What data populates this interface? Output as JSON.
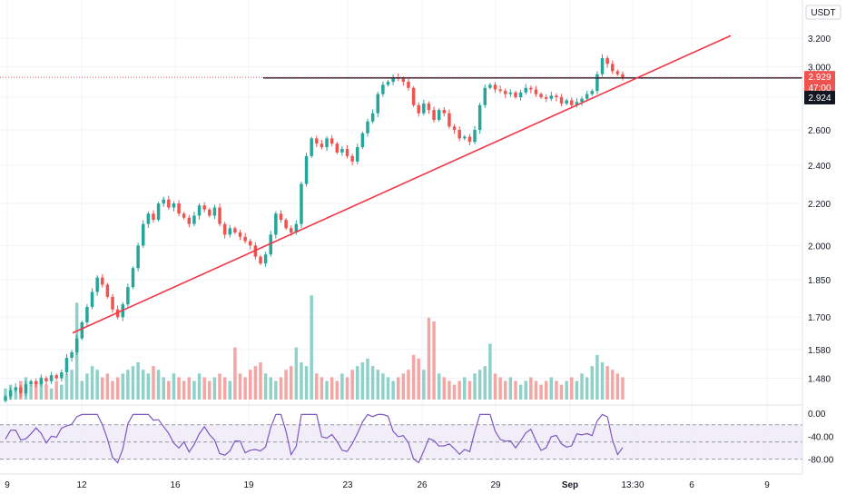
{
  "chart_data": {
    "type": "candlestick",
    "currency_label": "USDT",
    "price_axis": {
      "ticks": [
        "3.200",
        "3.000",
        "2.800",
        "2.600",
        "2.400",
        "2.200",
        "2.000",
        "1.850",
        "1.700",
        "1.580",
        "1.480"
      ],
      "tick_values": [
        3.2,
        3.0,
        2.8,
        2.6,
        2.4,
        2.2,
        2.0,
        1.85,
        1.7,
        1.58,
        1.48
      ],
      "scale": "log",
      "range": [
        1.41,
        3.35
      ]
    },
    "time_axis": {
      "labels": [
        "9",
        "12",
        "16",
        "19",
        "23",
        "26",
        "29",
        "Sep",
        "13:30",
        "6",
        "9"
      ]
    },
    "price_badges": {
      "last_price": "2.929",
      "countdown": "47:00",
      "crosshair_price": "2.924"
    },
    "colors": {
      "up": "#26a69a",
      "down": "#ef5350",
      "volume_up": "#8fd1c9",
      "volume_down": "#f4a6a4",
      "trendline": "#f23645",
      "horizontal_line": "#131722",
      "rsi_line": "#7e57c2",
      "rsi_band": "#ede7f6"
    },
    "annotations": {
      "horizontal_level": 2.925,
      "trendline": {
        "start_price": 1.64,
        "end_price": 3.22
      }
    },
    "candles": [
      1.42,
      1.44,
      1.45,
      1.43,
      1.46,
      1.47,
      1.46,
      1.48,
      1.47,
      1.49,
      1.48,
      1.5,
      1.55,
      1.57,
      1.62,
      1.68,
      1.74,
      1.8,
      1.86,
      1.83,
      1.78,
      1.73,
      1.7,
      1.75,
      1.82,
      1.9,
      2.0,
      2.1,
      2.15,
      2.12,
      2.2,
      2.22,
      2.18,
      2.2,
      2.15,
      2.13,
      2.1,
      2.14,
      2.19,
      2.17,
      2.14,
      2.18,
      2.1,
      2.05,
      2.08,
      2.06,
      2.04,
      2.02,
      2.0,
      1.95,
      1.92,
      1.96,
      2.05,
      2.15,
      2.12,
      2.08,
      2.06,
      2.1,
      2.3,
      2.45,
      2.55,
      2.52,
      2.5,
      2.55,
      2.52,
      2.47,
      2.49,
      2.45,
      2.42,
      2.5,
      2.58,
      2.65,
      2.7,
      2.82,
      2.88,
      2.9,
      2.93,
      2.92,
      2.9,
      2.86,
      2.75,
      2.7,
      2.76,
      2.72,
      2.66,
      2.72,
      2.7,
      2.62,
      2.6,
      2.55,
      2.56,
      2.53,
      2.6,
      2.75,
      2.86,
      2.88,
      2.85,
      2.84,
      2.82,
      2.83,
      2.8,
      2.83,
      2.86,
      2.85,
      2.82,
      2.8,
      2.79,
      2.81,
      2.8,
      2.76,
      2.78,
      2.75,
      2.77,
      2.79,
      2.82,
      2.84,
      2.95,
      3.06,
      3.02,
      2.97,
      2.95,
      2.93
    ],
    "volume_scale": [
      3,
      4,
      3,
      5,
      6,
      4,
      5,
      6,
      4,
      3,
      5,
      4,
      7,
      8,
      6,
      5,
      7,
      9,
      8,
      6,
      7,
      5,
      6,
      7,
      8,
      9,
      10,
      8,
      7,
      9,
      8,
      6,
      5,
      7,
      6,
      5,
      6,
      5,
      7,
      6,
      5,
      6,
      7,
      6,
      5,
      6,
      7,
      6,
      8,
      9,
      10,
      7,
      6,
      5,
      6,
      8,
      9,
      14,
      10,
      9,
      8,
      7,
      6,
      5,
      6,
      5,
      7,
      6,
      8,
      9,
      10,
      11,
      9,
      8,
      7,
      6,
      5,
      6,
      7,
      8,
      12,
      11,
      8,
      7,
      6,
      7,
      6,
      5,
      4,
      5,
      6,
      5,
      7,
      8,
      9,
      8,
      7,
      6,
      5,
      6,
      5,
      4,
      5,
      6,
      5,
      4,
      5,
      6,
      5,
      4,
      5,
      6,
      5,
      7,
      6,
      9,
      12,
      10,
      9,
      8,
      7,
      6
    ],
    "volume_spikes": {
      "14": 26,
      "45": 14,
      "60": 28,
      "83": 22,
      "84": 21,
      "95": 15
    },
    "rsi": {
      "ticks": [
        "0.00",
        "-40.00",
        "-80.00"
      ],
      "tick_values": [
        0,
        -40,
        -80
      ],
      "upper_band": -20,
      "lower_band": -80
    }
  }
}
